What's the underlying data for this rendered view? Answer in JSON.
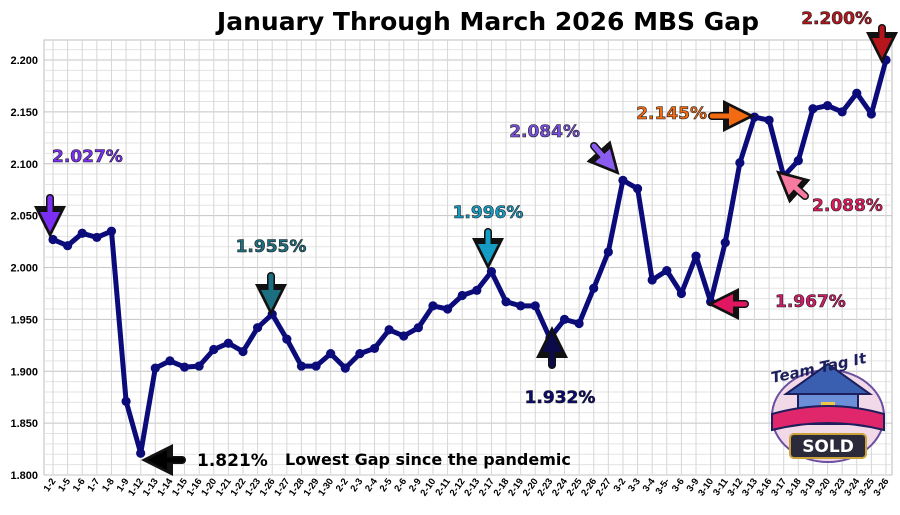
{
  "chart_data": {
    "type": "line",
    "title": "January Through March 2026 MBS Gap",
    "xlabel": "",
    "ylabel": "",
    "ylim": [
      1.8,
      2.225
    ],
    "yticks": [
      "1.800",
      "1.850",
      "1.900",
      "1.950",
      "2.000",
      "2.050",
      "2.100",
      "2.150",
      "2.200"
    ],
    "grid": true,
    "line_color": "#0b0b7a",
    "categories": [
      "1-2",
      "1-5",
      "1-6",
      "1-7",
      "1-8",
      "1-9",
      "1-12",
      "1-13",
      "1-14",
      "1-15",
      "1-16",
      "1-20",
      "1-21",
      "1-22",
      "1-23",
      "1-26",
      "1-27",
      "1-28",
      "1-29",
      "1-30",
      "2-2",
      "2-3",
      "2-4",
      "2-5",
      "2-6",
      "2-9",
      "2-10",
      "2-11",
      "2-12",
      "2-13",
      "2-17",
      "2-18",
      "2-19",
      "2-20",
      "2-23",
      "2-24",
      "2-25",
      "2-26",
      "2-27",
      "3-2",
      "3-3",
      "3-4",
      "3-5",
      "3-6",
      "3-9",
      "3-10",
      "3-11",
      "3-12",
      "3-13",
      "3-16",
      "3-17",
      "3-18",
      "3-19",
      "3-20",
      "3-23",
      "3-24",
      "3-25",
      "3-26"
    ],
    "xtick_labels": [
      "1-2",
      "1-5",
      "1-6",
      "1-7",
      "1-8",
      "1-9",
      "1-12",
      "1-13",
      "1-14",
      "1-15",
      "1-16",
      "1-20",
      "1-21",
      "1-22",
      "1-23",
      "1-26",
      "1-27",
      "1-28",
      "1-29",
      "1-30",
      "2-2",
      "2-3",
      "2-4",
      "2-5",
      "2-6",
      "2-9",
      "2-10",
      "2-11",
      "2-12",
      "2-13",
      "2-17",
      "2-18",
      "2-19",
      "2-20",
      "2-23",
      "2-24",
      "2-25",
      "2-26",
      "2-27",
      "3-2",
      "3-3",
      "3-4",
      "3-5-",
      "3-6",
      "3-9",
      "3-10",
      "3-11",
      "3-12",
      "3-13",
      "3-16",
      "3-17",
      "3-18",
      "3-19",
      "3-20",
      "3-23",
      "3-24",
      "3-25",
      "3-26"
    ],
    "values": [
      2.027,
      2.021,
      2.033,
      2.029,
      2.035,
      1.871,
      1.821,
      1.903,
      1.91,
      1.904,
      1.905,
      1.921,
      1.927,
      1.919,
      1.942,
      1.955,
      1.931,
      1.905,
      1.905,
      1.917,
      1.903,
      1.917,
      1.922,
      1.94,
      1.934,
      1.942,
      1.963,
      1.96,
      1.973,
      1.978,
      1.996,
      1.967,
      1.963,
      1.963,
      1.932,
      1.95,
      1.946,
      1.98,
      2.015,
      2.084,
      2.076,
      1.988,
      1.997,
      1.975,
      2.011,
      1.967,
      2.024,
      2.101,
      2.145,
      2.142,
      2.088,
      2.103,
      2.153,
      2.156,
      2.15,
      2.168,
      2.148,
      2.2
    ],
    "annotations": [
      {
        "text": "2.027%",
        "index": 0,
        "color": "#7b2ff2",
        "arrow_color": "#7b2ff2"
      },
      {
        "text": "1.821%",
        "index": 6,
        "color": "#000000",
        "arrow_color": "#000000"
      },
      {
        "text": "1.955%",
        "index": 15,
        "color": "#1b6f80",
        "arrow_color": "#1b6f80"
      },
      {
        "text": "1.996%",
        "index": 30,
        "color": "#149cc4",
        "arrow_color": "#149cc4"
      },
      {
        "text": "1.932%",
        "index": 34,
        "color": "#0b0b6e",
        "arrow_color": "#0b0b4a"
      },
      {
        "text": "2.084%",
        "index": 39,
        "color": "#7a4fe0",
        "arrow_color": "#8a5cf0"
      },
      {
        "text": "1.967%",
        "index": 45,
        "color": "#d11a6a",
        "arrow_color": "#e01660"
      },
      {
        "text": "2.145%",
        "index": 48,
        "color": "#f26a12",
        "arrow_color": "#f26a12"
      },
      {
        "text": "2.088%",
        "index": 50,
        "color": "#e0185e",
        "arrow_color": "#f77aa0"
      },
      {
        "text": "2.200%",
        "index": 57,
        "color": "#b5161c",
        "arrow_color": "#b5161c"
      }
    ],
    "note": "Lowest Gap since the pandemic"
  },
  "logo": {
    "top_text": "Team Tag It",
    "bottom_text": "SOLD"
  }
}
